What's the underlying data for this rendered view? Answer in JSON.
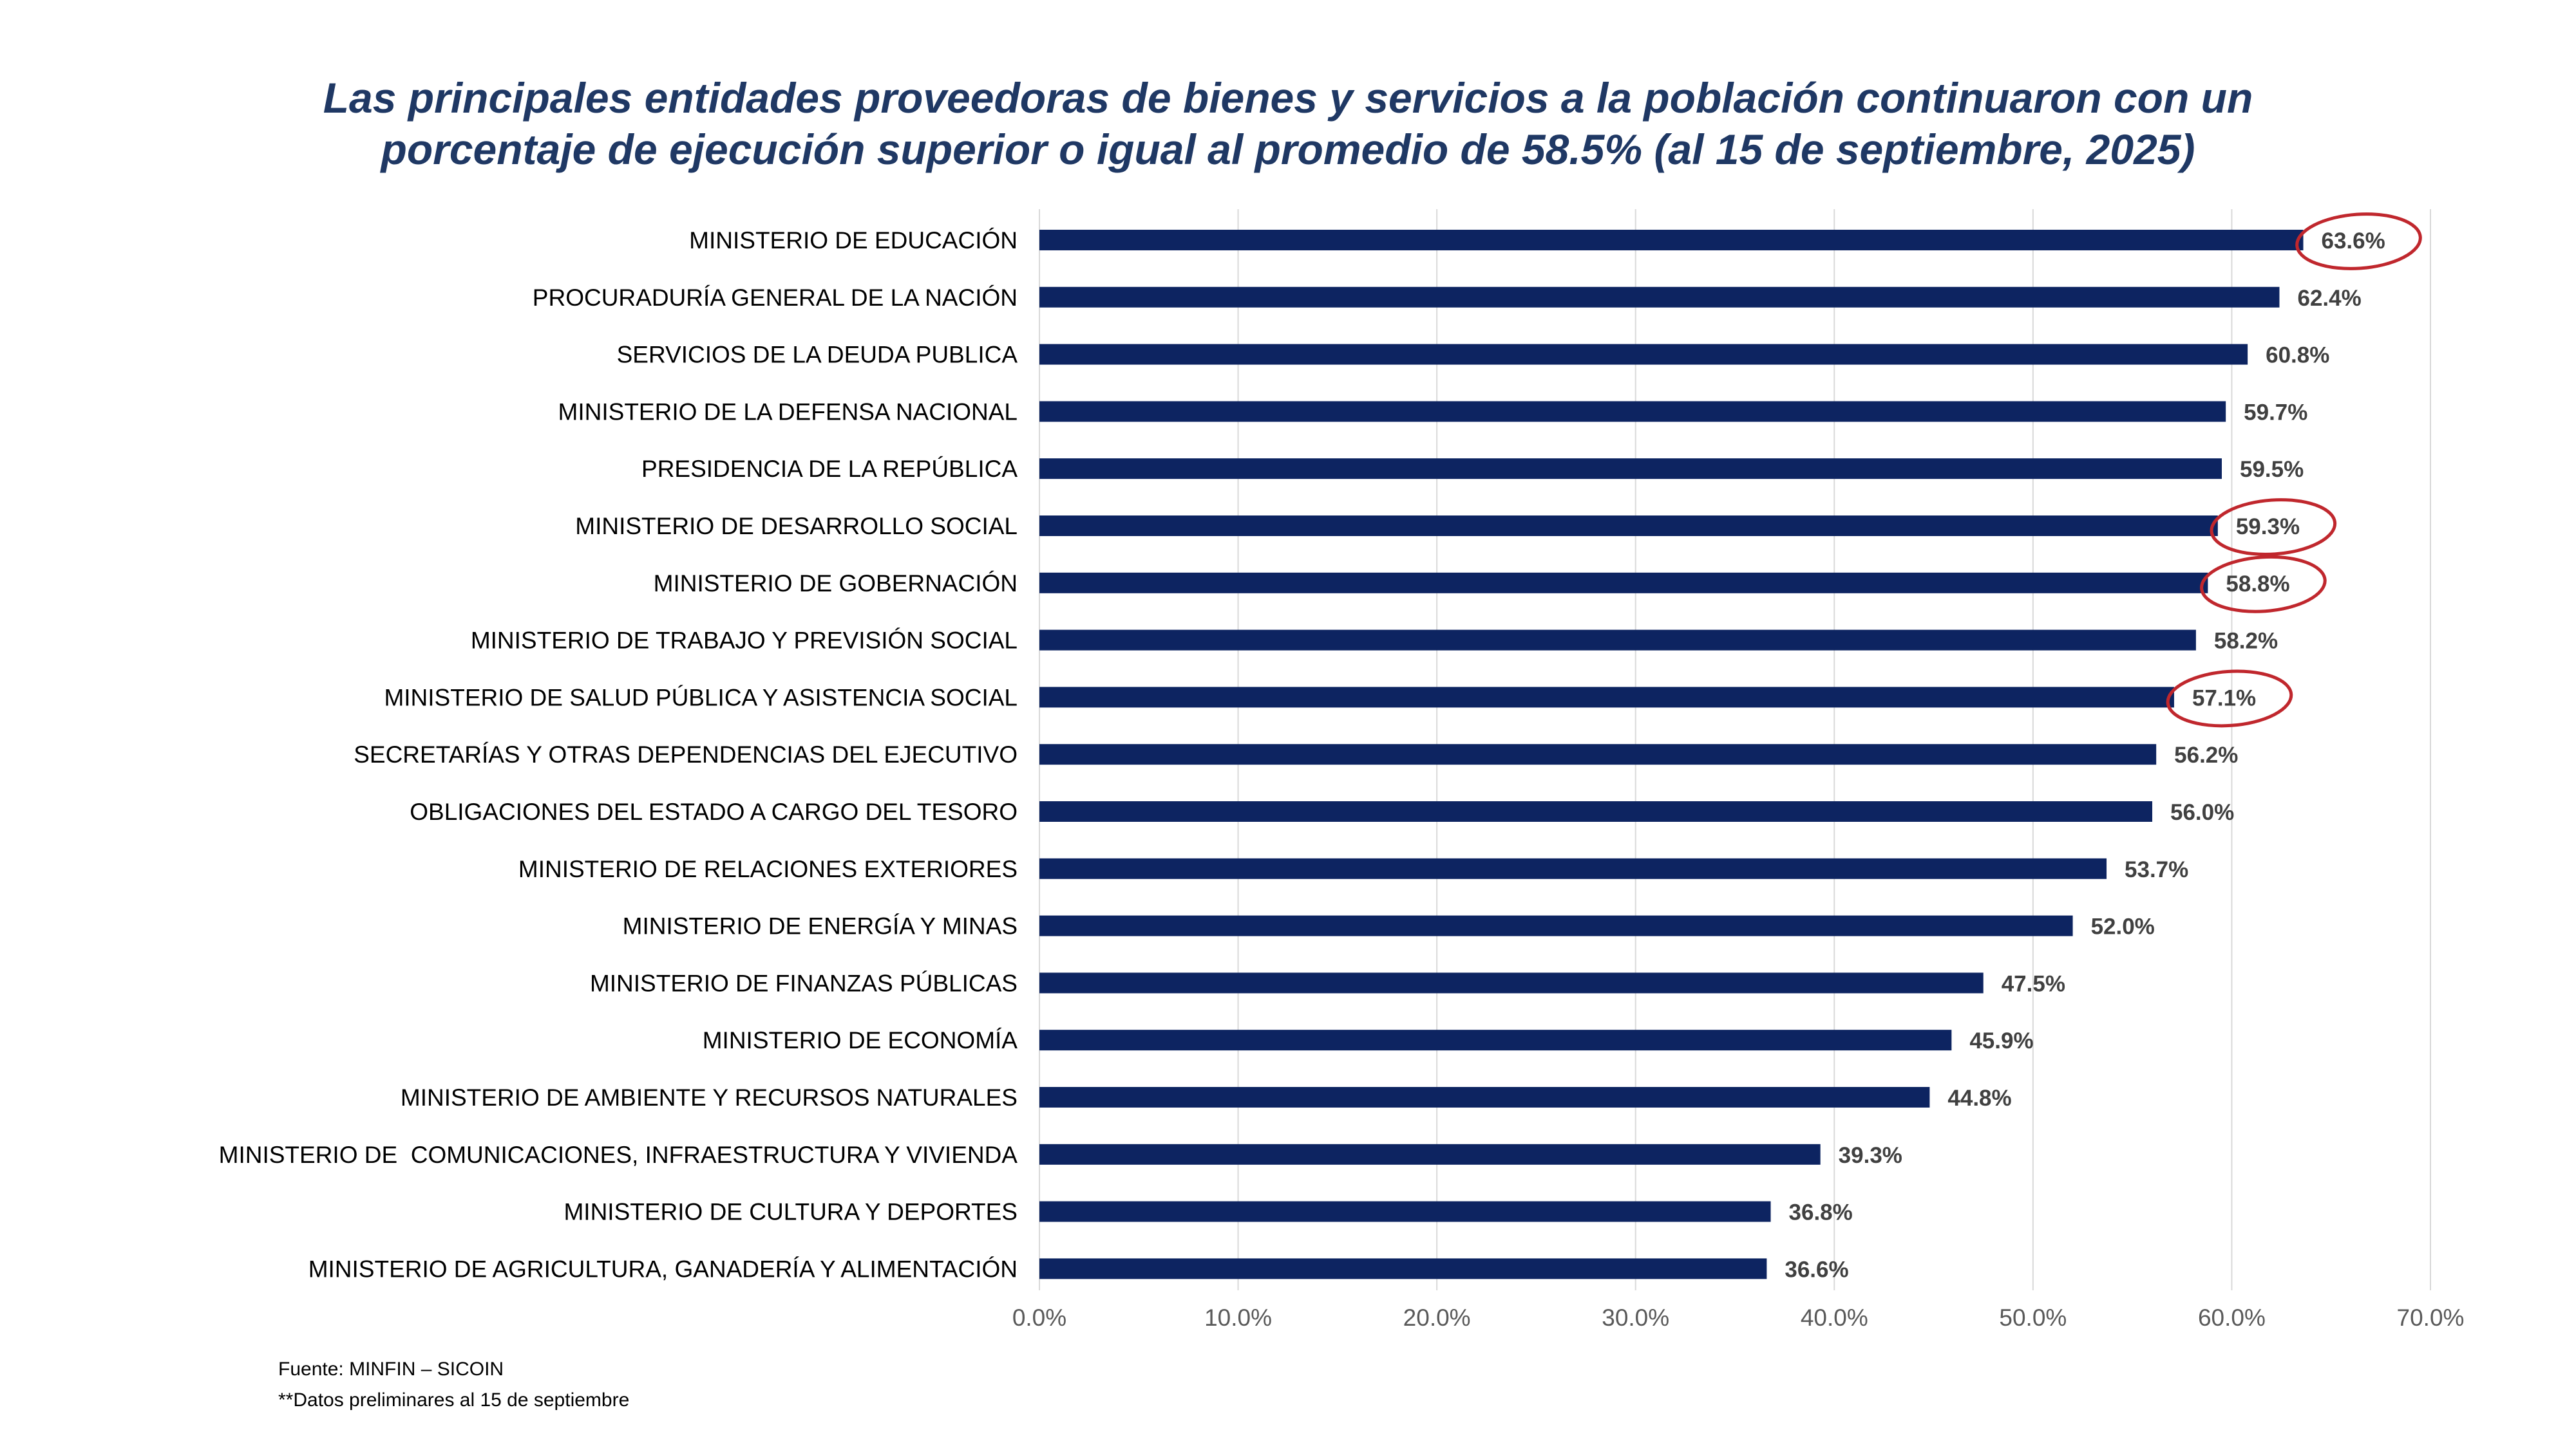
{
  "title_lines": [
    "Las principales entidades proveedoras de bienes y servicios a la población continuaron con un",
    "porcentaje de ejecución superior o igual al promedio de 58.5% (al 15 de septiembre, 2025)"
  ],
  "footnotes": {
    "source": "Fuente: MINFIN – SICOIN",
    "note": "**Datos preliminares al 15 de septiembre"
  },
  "colors": {
    "bar": "#0d2461",
    "title": "#1f3864",
    "highlight_circle": "#c0272d",
    "grid": "#d9d9d9"
  },
  "chart_data": {
    "type": "bar",
    "orientation": "horizontal",
    "categories": [
      "MINISTERIO DE EDUCACIÓN",
      "PROCURADURÍA GENERAL DE LA NACIÓN",
      "SERVICIOS DE LA DEUDA PUBLICA",
      "MINISTERIO DE LA DEFENSA NACIONAL",
      "PRESIDENCIA DE LA REPÚBLICA",
      "MINISTERIO DE DESARROLLO SOCIAL",
      "MINISTERIO DE GOBERNACIÓN",
      "MINISTERIO DE TRABAJO Y PREVISIÓN SOCIAL",
      "MINISTERIO DE SALUD PÚBLICA Y ASISTENCIA SOCIAL",
      "SECRETARÍAS Y OTRAS DEPENDENCIAS DEL EJECUTIVO",
      "OBLIGACIONES DEL ESTADO A CARGO DEL TESORO",
      "MINISTERIO DE RELACIONES EXTERIORES",
      "MINISTERIO DE ENERGÍA Y MINAS",
      "MINISTERIO DE FINANZAS PÚBLICAS",
      "MINISTERIO DE ECONOMÍA",
      "MINISTERIO DE AMBIENTE Y RECURSOS NATURALES",
      "MINISTERIO DE  COMUNICACIONES, INFRAESTRUCTURA Y VIVIENDA",
      "MINISTERIO DE CULTURA Y DEPORTES",
      "MINISTERIO DE AGRICULTURA, GANADERÍA Y ALIMENTACIÓN"
    ],
    "values": [
      63.6,
      62.4,
      60.8,
      59.7,
      59.5,
      59.3,
      58.8,
      58.2,
      57.1,
      56.2,
      56.0,
      53.7,
      52.0,
      47.5,
      45.9,
      44.8,
      39.3,
      36.8,
      36.6
    ],
    "value_labels": [
      "63.6%",
      "62.4%",
      "60.8%",
      "59.7%",
      "59.5%",
      "59.3%",
      "58.8%",
      "58.2%",
      "57.1%",
      "56.2%",
      "56.0%",
      "53.7%",
      "52.0%",
      "47.5%",
      "45.9%",
      "44.8%",
      "39.3%",
      "36.8%",
      "36.6%"
    ],
    "highlighted": [
      "MINISTERIO DE EDUCACIÓN",
      "MINISTERIO DE DESARROLLO SOCIAL",
      "MINISTERIO DE GOBERNACIÓN",
      "MINISTERIO DE SALUD PÚBLICA Y ASISTENCIA SOCIAL"
    ],
    "x_ticks": [
      "0.0%",
      "10.0%",
      "20.0%",
      "30.0%",
      "40.0%",
      "50.0%",
      "60.0%",
      "70.0%"
    ],
    "xlim": [
      0,
      70
    ],
    "grid": true,
    "legend": "none"
  }
}
